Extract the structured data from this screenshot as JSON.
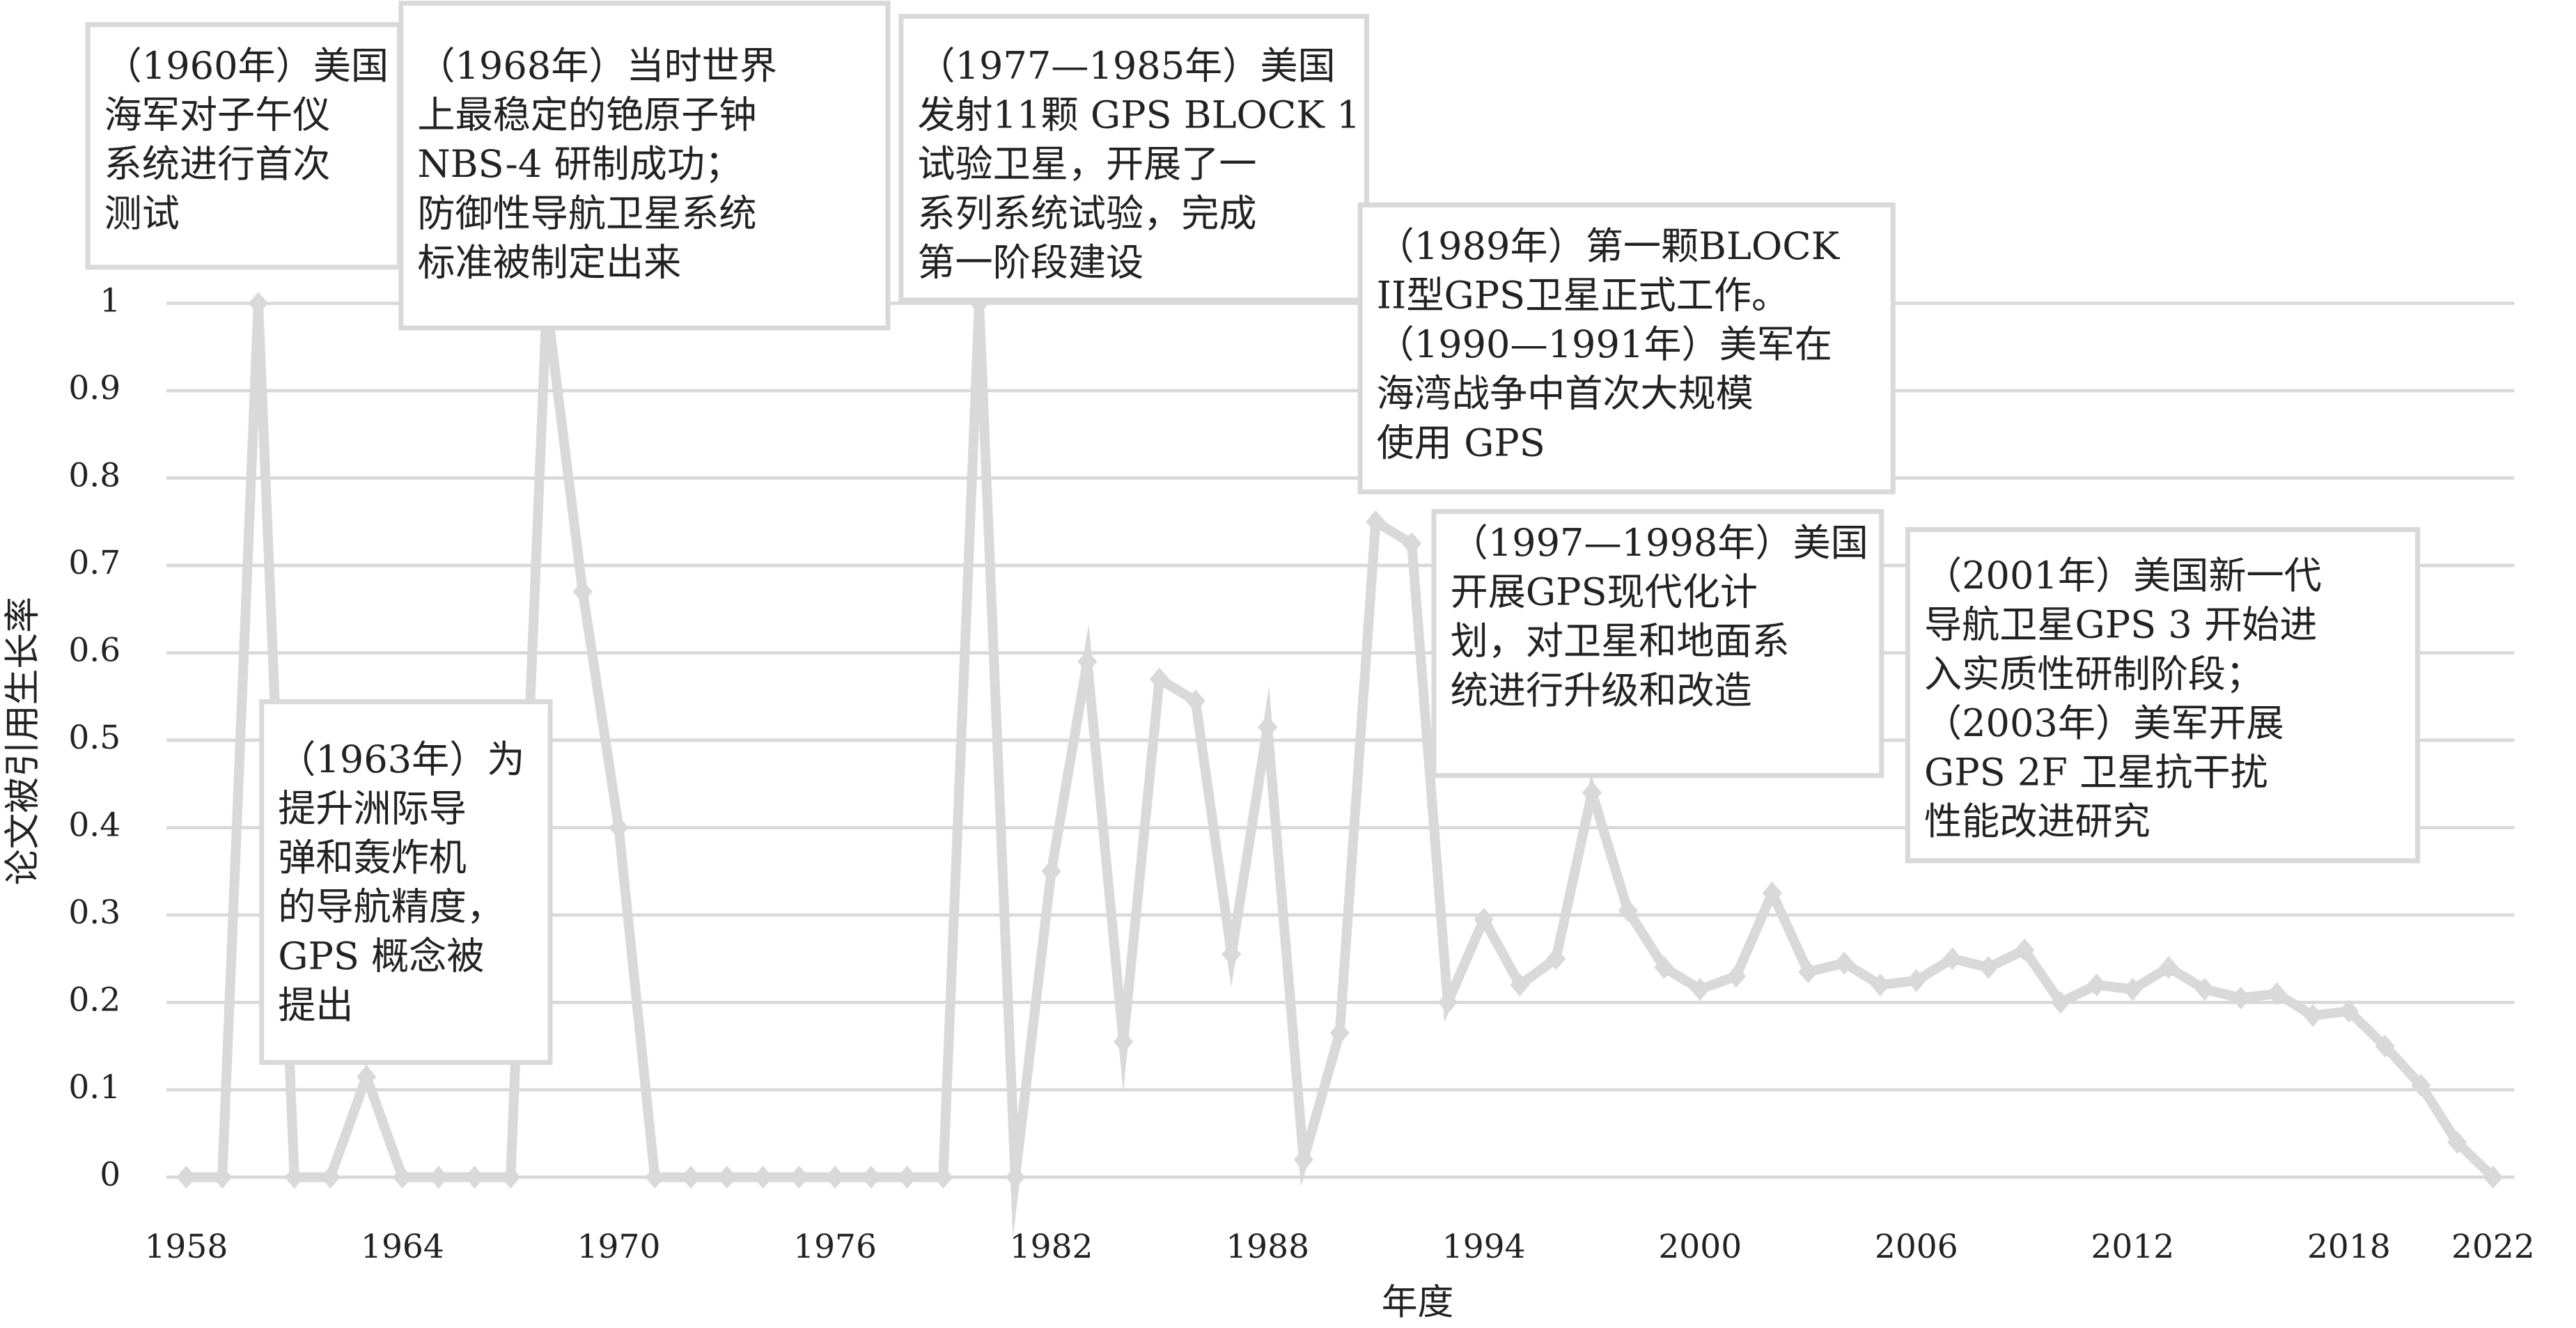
{
  "chart_data": {
    "type": "line",
    "xlabel": "年度",
    "ylabel": "论文被引用生长率",
    "x": [
      1958,
      1959,
      1960,
      1961,
      1962,
      1963,
      1964,
      1965,
      1966,
      1967,
      1968,
      1969,
      1970,
      1971,
      1972,
      1973,
      1974,
      1975,
      1976,
      1977,
      1978,
      1979,
      1980,
      1981,
      1982,
      1983,
      1984,
      1985,
      1986,
      1987,
      1988,
      1989,
      1990,
      1991,
      1992,
      1993,
      1994,
      1995,
      1996,
      1997,
      1998,
      1999,
      2000,
      2001,
      2002,
      2003,
      2004,
      2005,
      2006,
      2007,
      2008,
      2009,
      2010,
      2011,
      2012,
      2013,
      2014,
      2015,
      2016,
      2017,
      2018,
      2019,
      2020,
      2021,
      2022
    ],
    "series": [
      {
        "name": "论文被引用生长率",
        "color": "#d9d9d9",
        "values": [
          0,
          0,
          1,
          0,
          0,
          0.115,
          0,
          0,
          0,
          0,
          1,
          0.67,
          0.4,
          0,
          0,
          0,
          0,
          0,
          0,
          0,
          0,
          0,
          1,
          0,
          0.35,
          0.59,
          0.155,
          0.57,
          0.545,
          0.255,
          0.515,
          0.02,
          0.165,
          0.75,
          0.725,
          0.2,
          0.295,
          0.22,
          0.25,
          0.44,
          0.305,
          0.24,
          0.215,
          0.23,
          0.325,
          0.235,
          0.245,
          0.22,
          0.225,
          0.25,
          0.24,
          0.26,
          0.2,
          0.22,
          0.215,
          0.24,
          0.215,
          0.205,
          0.21,
          0.185,
          0.19,
          0.15,
          0.105,
          0.04,
          0
        ]
      }
    ],
    "xlim": [
      1958,
      2022
    ],
    "xticks": [
      1958,
      1964,
      1970,
      1976,
      1982,
      1988,
      1994,
      2000,
      2006,
      2012,
      2018,
      2022
    ],
    "ylim": [
      0,
      1
    ],
    "yticks": [
      0,
      0.1,
      0.2,
      0.3,
      0.4,
      0.5,
      0.6,
      0.7,
      0.8,
      0.9,
      1
    ],
    "grid": true,
    "annotations": [
      {
        "lines": [
          "（1960年）美国",
          "海军对子午仪",
          "系统进行首次",
          "测试"
        ]
      },
      {
        "lines": [
          "（1968年）当时世界",
          "上最稳定的铯原子钟",
          "NBS-4 研制成功；",
          "防御性导航卫星系统",
          "标准被制定出来"
        ]
      },
      {
        "lines": [
          "（1977—1985年）美国",
          "发射11颗 GPS BLOCK 1",
          "试验卫星，开展了一",
          "系列系统试验，完成",
          "第一阶段建设"
        ]
      },
      {
        "lines": [
          "（1989年）第一颗BLOCK",
          "II型GPS卫星正式工作。",
          "（1990—1991年）美军在",
          "海湾战争中首次大规模",
          "使用 GPS"
        ]
      },
      {
        "lines": [
          "（1997—1998年）美国",
          "开展GPS现代化计",
          "划，对卫星和地面系",
          "统进行升级和改造"
        ]
      },
      {
        "lines": [
          "（2001年）美国新一代",
          "导航卫星GPS 3 开始进",
          "入实质性研制阶段；",
          "（2003年）美军开展",
          "GPS 2F 卫星抗干扰",
          "性能改进研究"
        ]
      },
      {
        "lines": [
          "（1963年）为",
          "提升洲际导",
          "弹和轰炸机",
          "的导航精度，",
          "GPS 概念被",
          "提出"
        ]
      }
    ]
  }
}
